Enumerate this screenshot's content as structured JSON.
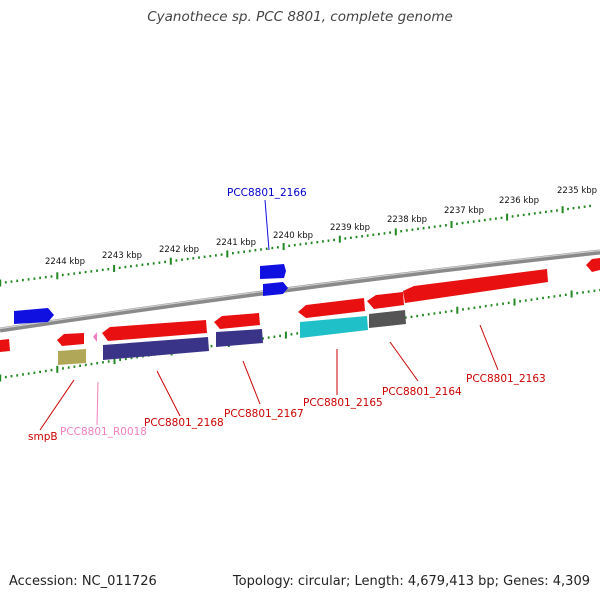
{
  "title": "Cyanothece sp. PCC 8801, complete genome",
  "footer": {
    "accession": "Accession: NC_011726",
    "summary": "Topology: circular; Length: 4,679,413 bp; Genes: 4,309"
  },
  "ticks": [
    "2235 kbp",
    "2236 kbp",
    "2237 kbp",
    "2238 kbp",
    "2239 kbp",
    "2240 kbp",
    "2241 kbp",
    "2242 kbp",
    "2243 kbp",
    "2244 kbp"
  ],
  "gene_labels": {
    "pcc2166": "PCC8801_2166",
    "pcc2163": "PCC8801_2163",
    "pcc2164": "PCC8801_2164",
    "pcc2165": "PCC8801_2165",
    "pcc2167": "PCC8801_2167",
    "pcc2168": "PCC8801_2168",
    "r0018": "PCC8801_R0018",
    "smpb": "smpB"
  },
  "colors": {
    "cds_red": "#e81010",
    "blue": "#1010e0",
    "navy": "#3a3488",
    "cyan": "#20c0c8",
    "gray": "#555555",
    "olive": "#b0a858",
    "pink": "#f080c0",
    "tick_green": "#228822",
    "backbone": "#777777"
  }
}
